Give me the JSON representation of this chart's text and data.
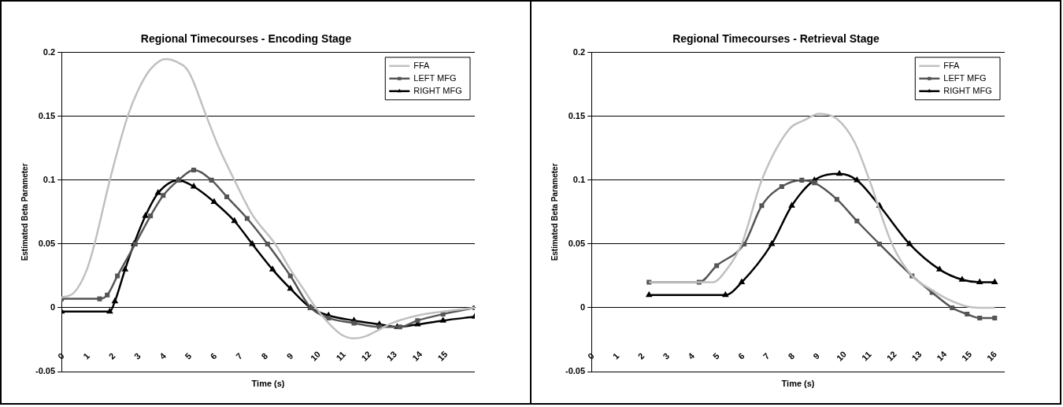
{
  "chart_data": [
    {
      "type": "line",
      "title": "Regional Timecourses - Encoding Stage",
      "xlabel": "Time (s)",
      "ylabel": "Estimated Beta Parameter",
      "xlim": [
        0,
        16.25
      ],
      "xticks": [
        0,
        1,
        2,
        3,
        4,
        5,
        6,
        7,
        8,
        9,
        10,
        11,
        12,
        13,
        14,
        15
      ],
      "ylim": [
        -0.05,
        0.2
      ],
      "yticks": [
        -0.05,
        0,
        0.05,
        0.1,
        0.15,
        0.2
      ],
      "grid": "y",
      "legend": "top right",
      "series": [
        {
          "name": "FFA",
          "color": "#c0c0c0",
          "marker": "none",
          "x": [
            0,
            0.5,
            1,
            1.3,
            1.9,
            2.6,
            3,
            3.5,
            4.1,
            4.5,
            5,
            5.7,
            6.2,
            6.8,
            7.5,
            8.4,
            9,
            9.5,
            10,
            10.5,
            11,
            11.5,
            12,
            12.5,
            13,
            14,
            15,
            16.25
          ],
          "values": [
            0.008,
            0.012,
            0.03,
            0.05,
            0.1,
            0.15,
            0.17,
            0.187,
            0.195,
            0.193,
            0.185,
            0.15,
            0.125,
            0.1,
            0.073,
            0.05,
            0.03,
            0.015,
            0,
            -0.012,
            -0.021,
            -0.024,
            -0.022,
            -0.017,
            -0.012,
            -0.006,
            -0.003,
            0
          ]
        },
        {
          "name": "LEFT MFG",
          "color": "#555555",
          "marker": "square",
          "x": [
            0,
            1.5,
            1.8,
            2.2,
            2.9,
            3.5,
            4,
            4.6,
            5.2,
            5.9,
            6.5,
            7.3,
            8.1,
            9,
            9.8,
            10.5,
            11.5,
            12.5,
            13.3,
            14,
            15,
            16.25
          ],
          "values": [
            0.007,
            0.007,
            0.01,
            0.025,
            0.05,
            0.072,
            0.088,
            0.1,
            0.108,
            0.1,
            0.087,
            0.07,
            0.05,
            0.025,
            0,
            -0.008,
            -0.012,
            -0.015,
            -0.015,
            -0.01,
            -0.005,
            0
          ]
        },
        {
          "name": "RIGHT MFG",
          "color": "#000000",
          "marker": "triangle",
          "x": [
            0,
            1.9,
            2.1,
            2.5,
            2.85,
            3.3,
            3.8,
            4.6,
            5.2,
            6,
            6.8,
            7.5,
            8.3,
            9,
            9.8,
            10.5,
            11.5,
            12.5,
            13.2,
            14,
            15,
            16.25
          ],
          "values": [
            -0.003,
            -0.003,
            0.005,
            0.03,
            0.05,
            0.072,
            0.09,
            0.1,
            0.095,
            0.083,
            0.068,
            0.05,
            0.03,
            0.015,
            0,
            -0.006,
            -0.01,
            -0.013,
            -0.015,
            -0.013,
            -0.01,
            -0.007
          ]
        }
      ]
    },
    {
      "type": "line",
      "title": "Regional Timecourses - Retrieval Stage",
      "xlabel": "Time (s)",
      "ylabel": "Estimated Beta Parameter",
      "xlim": [
        0,
        16.5
      ],
      "xticks": [
        0,
        1,
        2,
        3,
        4,
        5,
        6,
        7,
        8,
        9,
        10,
        11,
        12,
        13,
        14,
        15,
        16
      ],
      "ylim": [
        -0.05,
        0.2
      ],
      "yticks": [
        -0.05,
        0,
        0.05,
        0.1,
        0.15,
        0.2
      ],
      "grid": "y",
      "legend": "top right",
      "series": [
        {
          "name": "FFA",
          "color": "#c0c0c0",
          "marker": "none",
          "x": [
            2.3,
            4.85,
            5.4,
            6,
            6.8,
            7.9,
            8.5,
            9.1,
            9.8,
            10.5,
            11.1,
            12,
            12.8,
            13.5,
            14.2,
            15,
            15.5,
            16.1
          ],
          "values": [
            0.02,
            0.02,
            0.03,
            0.05,
            0.1,
            0.14,
            0.147,
            0.152,
            0.148,
            0.13,
            0.1,
            0.05,
            0.025,
            0.015,
            0.007,
            0.001,
            0,
            0
          ]
        },
        {
          "name": "LEFT MFG",
          "color": "#555555",
          "marker": "square",
          "x": [
            2.3,
            4.3,
            5,
            6.1,
            6.8,
            7.6,
            8.4,
            8.9,
            9.8,
            10.6,
            11.5,
            12.8,
            13.6,
            14.4,
            15,
            15.5,
            16.1
          ],
          "values": [
            0.02,
            0.02,
            0.033,
            0.05,
            0.08,
            0.095,
            0.1,
            0.098,
            0.085,
            0.068,
            0.05,
            0.025,
            0.012,
            0,
            -0.005,
            -0.008,
            -0.008
          ]
        },
        {
          "name": "RIGHT MFG",
          "color": "#000000",
          "marker": "triangle",
          "x": [
            2.3,
            5.35,
            6,
            7.2,
            8,
            8.9,
            9.9,
            10.6,
            11.5,
            12.7,
            13.9,
            14.8,
            15.5,
            16.1
          ],
          "values": [
            0.01,
            0.01,
            0.02,
            0.05,
            0.08,
            0.1,
            0.105,
            0.1,
            0.08,
            0.05,
            0.03,
            0.022,
            0.02,
            0.02
          ]
        }
      ]
    }
  ]
}
